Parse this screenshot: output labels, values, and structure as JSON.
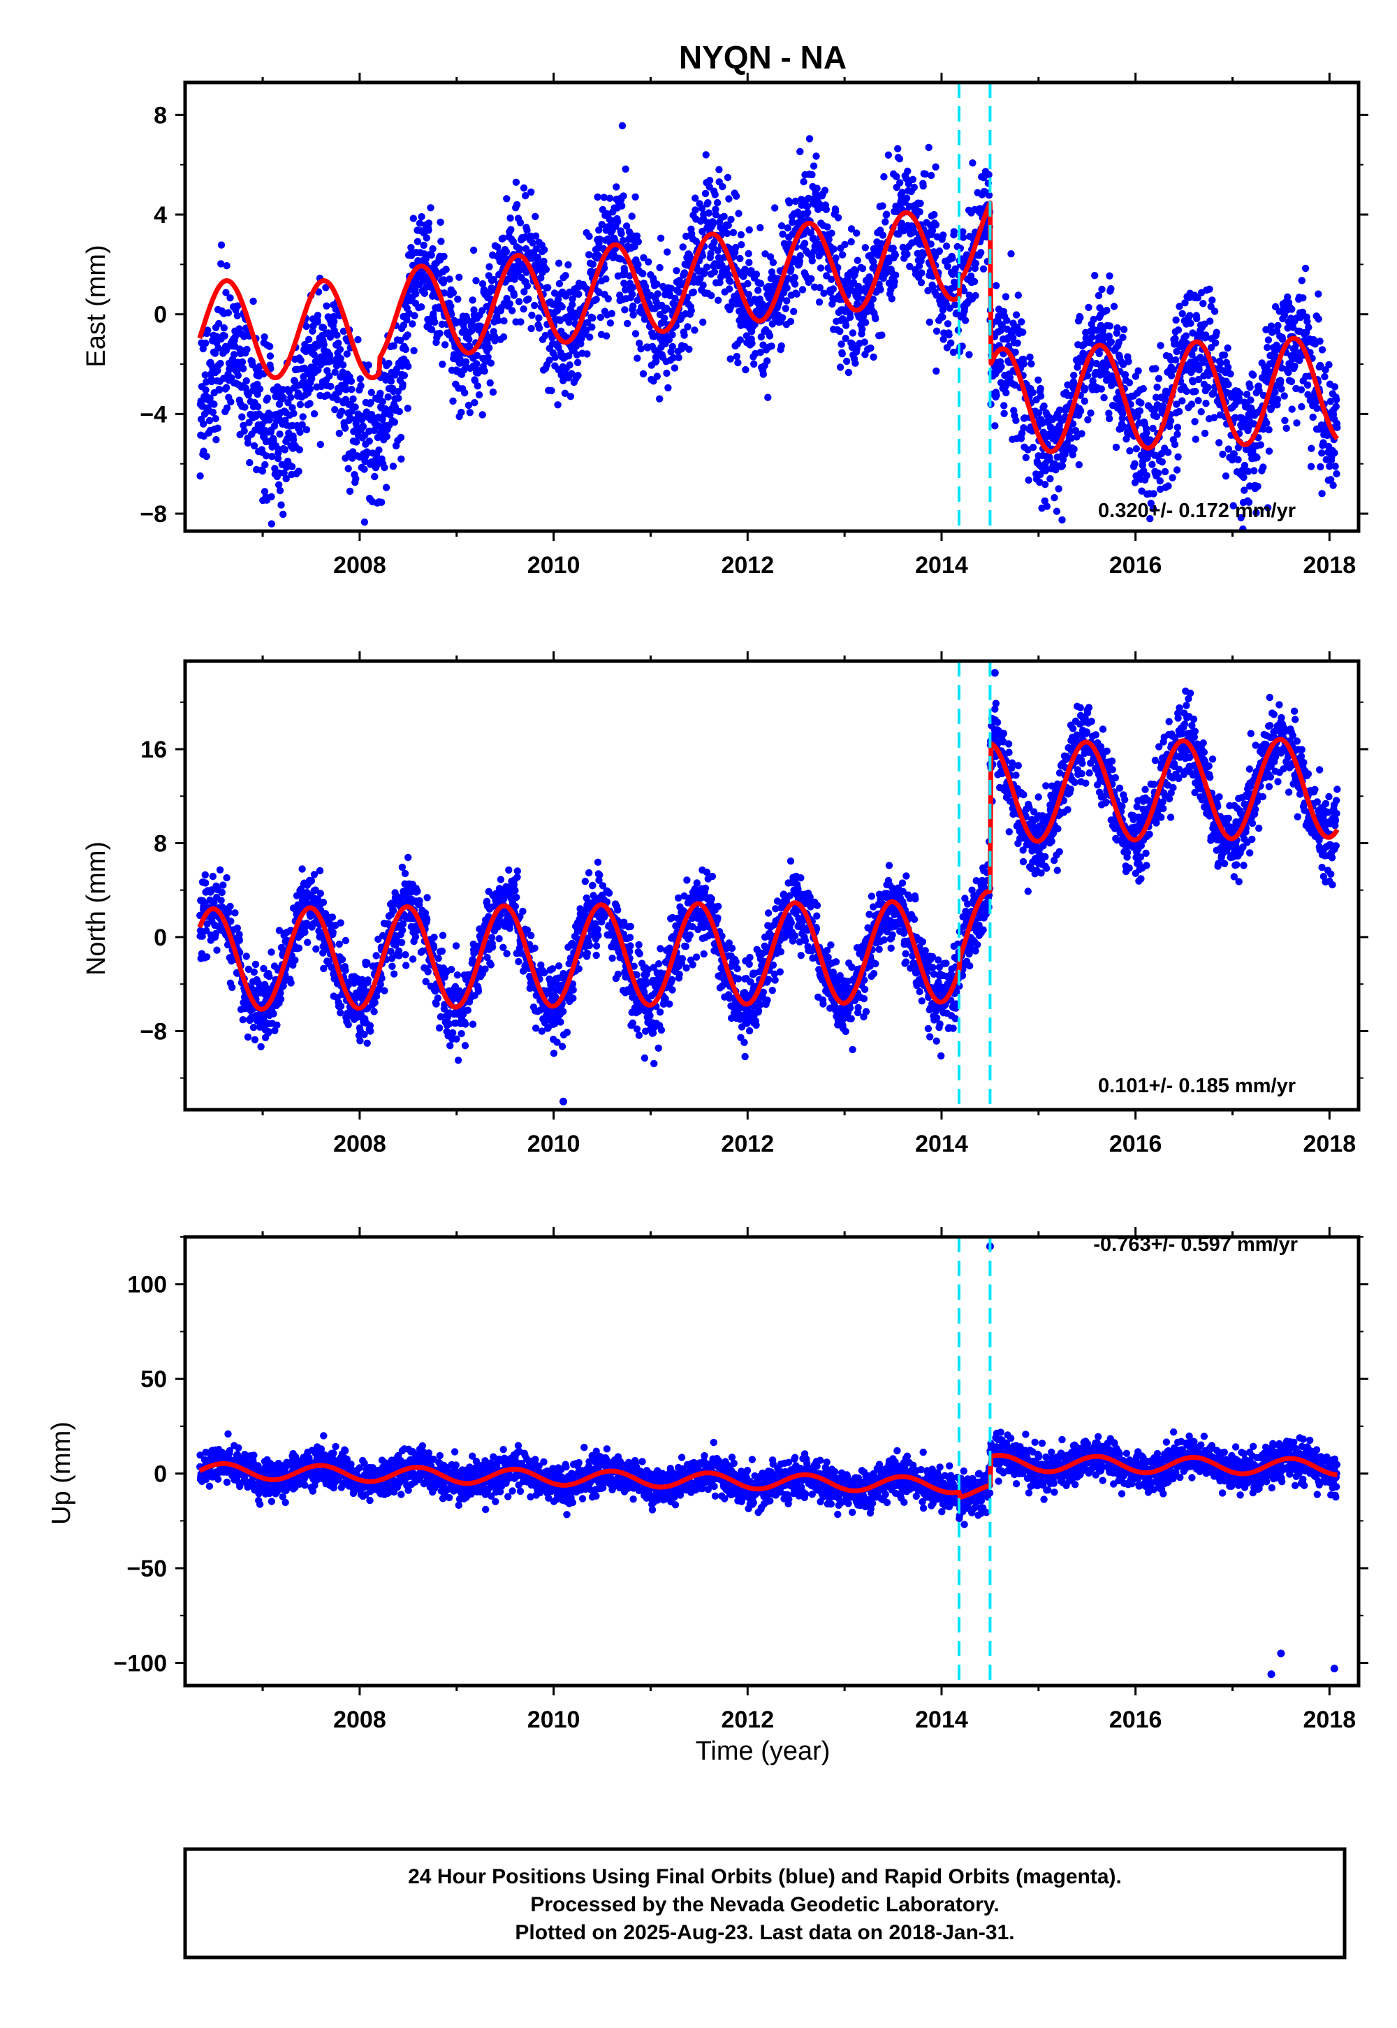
{
  "title": "NYQN - NA",
  "chart_data": [
    {
      "type": "scatter",
      "component": "east",
      "ylabel": "East (mm)",
      "xlim": [
        2006.2,
        2018.3
      ],
      "ylim": [
        -8.7,
        9.3
      ],
      "yticks": [
        -8,
        -4,
        0,
        4,
        8
      ],
      "xticks": [
        2008,
        2010,
        2012,
        2014,
        2016,
        2018
      ],
      "xticklabels": [
        "2008",
        "2010",
        "2012",
        "2014",
        "2016",
        "2018"
      ],
      "rate_label": "0.320+/- 0.172 mm/yr",
      "rate_position": "bottom-right",
      "break_lines": [
        2014.18,
        2014.5
      ],
      "data_start": 2006.35,
      "data_end": 2018.08,
      "observations_approx": [
        {
          "x": 2006.4,
          "y": -2.0
        },
        {
          "x": 2006.9,
          "y": -4.5
        },
        {
          "x": 2007.3,
          "y": -3.5
        },
        {
          "x": 2007.8,
          "y": -2.0
        },
        {
          "x": 2008.1,
          "y": -4.0
        },
        {
          "x": 2008.6,
          "y": 3.0
        },
        {
          "x": 2009.0,
          "y": 0.5
        },
        {
          "x": 2009.6,
          "y": 3.5
        },
        {
          "x": 2010.0,
          "y": 0.0
        },
        {
          "x": 2010.6,
          "y": 4.0
        },
        {
          "x": 2011.0,
          "y": 1.5
        },
        {
          "x": 2011.6,
          "y": 4.5
        },
        {
          "x": 2012.0,
          "y": 1.0
        },
        {
          "x": 2012.6,
          "y": 5.5
        },
        {
          "x": 2013.0,
          "y": 3.0
        },
        {
          "x": 2013.6,
          "y": 5.0
        },
        {
          "x": 2014.0,
          "y": 2.5
        },
        {
          "x": 2014.6,
          "y": -2.0
        },
        {
          "x": 2015.0,
          "y": -5.0
        },
        {
          "x": 2015.6,
          "y": -1.5
        },
        {
          "x": 2016.0,
          "y": -4.5
        },
        {
          "x": 2016.6,
          "y": -1.5
        },
        {
          "x": 2017.0,
          "y": -4.5
        },
        {
          "x": 2017.6,
          "y": -1.0
        },
        {
          "x": 2018.0,
          "y": -5.0
        }
      ],
      "model": {
        "segments": [
          {
            "x_start": 2006.35,
            "x_end": 2008.2,
            "base": [
              [
                2006.35,
                -0.6
              ],
              [
                2008.2,
                -0.6
              ]
            ],
            "amplitude": 1.95,
            "phase": 0.63
          },
          {
            "x_start": 2008.2,
            "x_end": 2014.5,
            "base": [
              [
                2008.2,
                -0.1
              ],
              [
                2014.5,
                2.6
              ]
            ],
            "amplitude": 1.85,
            "phase": 0.63
          },
          {
            "x_start": 2014.5,
            "x_end": 2018.08,
            "base": [
              [
                2014.5,
                -3.5
              ],
              [
                2018.08,
                -3.0
              ]
            ],
            "amplitude": 2.1,
            "phase": 0.63
          }
        ],
        "step_at": 2014.18,
        "step_value": 0.6
      },
      "noise_mm": 1.3,
      "extra_points": []
    },
    {
      "type": "scatter",
      "component": "north",
      "ylabel": "North (mm)",
      "xlim": [
        2006.2,
        2018.3
      ],
      "ylim": [
        -14.7,
        23.5
      ],
      "yticks": [
        -8,
        0,
        8,
        16
      ],
      "xticks": [
        2008,
        2010,
        2012,
        2014,
        2016,
        2018
      ],
      "xticklabels": [
        "2008",
        "2010",
        "2012",
        "2014",
        "2016",
        "2018"
      ],
      "rate_label": "0.101+/- 0.185 mm/yr",
      "rate_position": "bottom-right",
      "break_lines": [
        2014.18,
        2014.5
      ],
      "data_start": 2006.35,
      "data_end": 2018.08,
      "observations_approx": [
        {
          "x": 2006.5,
          "y": 1.5
        },
        {
          "x": 2006.9,
          "y": -6.0
        },
        {
          "x": 2007.5,
          "y": 2.0
        },
        {
          "x": 2007.9,
          "y": -5.5
        },
        {
          "x": 2008.5,
          "y": 3.0
        },
        {
          "x": 2008.9,
          "y": -5.5
        },
        {
          "x": 2009.5,
          "y": 3.0
        },
        {
          "x": 2009.9,
          "y": -5.5
        },
        {
          "x": 2010.5,
          "y": 2.5
        },
        {
          "x": 2010.9,
          "y": -5.5
        },
        {
          "x": 2011.5,
          "y": 2.5
        },
        {
          "x": 2011.9,
          "y": -5.5
        },
        {
          "x": 2012.5,
          "y": 2.5
        },
        {
          "x": 2012.9,
          "y": -5.5
        },
        {
          "x": 2013.5,
          "y": 3.0
        },
        {
          "x": 2013.9,
          "y": -5.5
        },
        {
          "x": 2014.6,
          "y": 18.0
        },
        {
          "x": 2014.9,
          "y": 8.0
        },
        {
          "x": 2015.5,
          "y": 16.5
        },
        {
          "x": 2015.9,
          "y": 8.5
        },
        {
          "x": 2016.5,
          "y": 16.5
        },
        {
          "x": 2016.9,
          "y": 8.5
        },
        {
          "x": 2017.5,
          "y": 17.0
        },
        {
          "x": 2018.0,
          "y": 8.5
        }
      ],
      "model": {
        "segments": [
          {
            "x_start": 2006.35,
            "x_end": 2014.5,
            "base": [
              [
                2006.35,
                -1.9
              ],
              [
                2014.5,
                -1.2
              ]
            ],
            "amplitude": 4.3,
            "phase": 0.49
          },
          {
            "x_start": 2014.5,
            "x_end": 2018.08,
            "base": [
              [
                2014.5,
                12.3
              ],
              [
                2018.08,
                12.7
              ]
            ],
            "amplitude": 4.2,
            "phase": 0.49
          }
        ],
        "step_at": 2014.18,
        "step_value": 0.8
      },
      "noise_mm": 1.6,
      "extra_points": [
        {
          "x": 2010.1,
          "y": -14.0
        },
        {
          "x": 2014.55,
          "y": 22.5
        }
      ]
    },
    {
      "type": "scatter",
      "component": "up",
      "ylabel": "Up (mm)",
      "xlim": [
        2006.2,
        2018.3
      ],
      "ylim": [
        -112,
        125
      ],
      "yticks": [
        -100,
        -50,
        0,
        50,
        100
      ],
      "xticks": [
        2008,
        2010,
        2012,
        2014,
        2016,
        2018
      ],
      "xticklabels": [
        "2008",
        "2010",
        "2012",
        "2014",
        "2016",
        "2018"
      ],
      "xlabel": "Time (year)",
      "rate_label": "-0.763+/- 0.597 mm/yr",
      "rate_position": "top-right",
      "break_lines": [
        2014.18,
        2014.5
      ],
      "data_start": 2006.35,
      "data_end": 2018.08,
      "observations_approx": [
        {
          "x": 2006.6,
          "y": 5
        },
        {
          "x": 2007.0,
          "y": -3
        },
        {
          "x": 2007.6,
          "y": 6
        },
        {
          "x": 2008.0,
          "y": -2
        },
        {
          "x": 2008.6,
          "y": 5
        },
        {
          "x": 2009.0,
          "y": -3
        },
        {
          "x": 2009.6,
          "y": 4
        },
        {
          "x": 2010.0,
          "y": -4
        },
        {
          "x": 2010.6,
          "y": 3
        },
        {
          "x": 2011.0,
          "y": -5
        },
        {
          "x": 2011.6,
          "y": 2
        },
        {
          "x": 2012.0,
          "y": -6
        },
        {
          "x": 2012.6,
          "y": 1
        },
        {
          "x": 2013.0,
          "y": -7
        },
        {
          "x": 2013.6,
          "y": 0
        },
        {
          "x": 2014.3,
          "y": -12
        },
        {
          "x": 2014.6,
          "y": 9
        },
        {
          "x": 2015.0,
          "y": 3
        },
        {
          "x": 2015.6,
          "y": 8
        },
        {
          "x": 2016.0,
          "y": 1
        },
        {
          "x": 2016.6,
          "y": 8
        },
        {
          "x": 2017.0,
          "y": 0
        },
        {
          "x": 2017.6,
          "y": 7
        },
        {
          "x": 2018.0,
          "y": 1
        }
      ],
      "model": {
        "segments": [
          {
            "x_start": 2006.35,
            "x_end": 2014.5,
            "base": [
              [
                2006.35,
                1.5
              ],
              [
                2014.5,
                -6.5
              ]
            ],
            "amplitude": 4.0,
            "phase": 0.6
          },
          {
            "x_start": 2014.5,
            "x_end": 2018.08,
            "base": [
              [
                2014.5,
                5.5
              ],
              [
                2018.08,
                3.5
              ]
            ],
            "amplitude": 4.2,
            "phase": 0.6
          }
        ],
        "step_at": 2014.18,
        "step_value": -3.0
      },
      "noise_mm": 5.0,
      "extra_points": [
        {
          "x": 2014.5,
          "y": 120
        },
        {
          "x": 2017.4,
          "y": -106
        },
        {
          "x": 2017.5,
          "y": -95
        },
        {
          "x": 2018.05,
          "y": -103
        }
      ]
    }
  ],
  "colors": {
    "observations": "#0000ff",
    "model": "#ff0000",
    "break_lines": "#00e5ff",
    "frame": "#000000"
  },
  "footer": {
    "line1": "24 Hour Positions Using Final Orbits (blue) and Rapid Orbits (magenta).",
    "line2": "Processed by the Nevada Geodetic Laboratory.",
    "line3": "Plotted on 2025-Aug-23. Last data on 2018-Jan-31."
  }
}
